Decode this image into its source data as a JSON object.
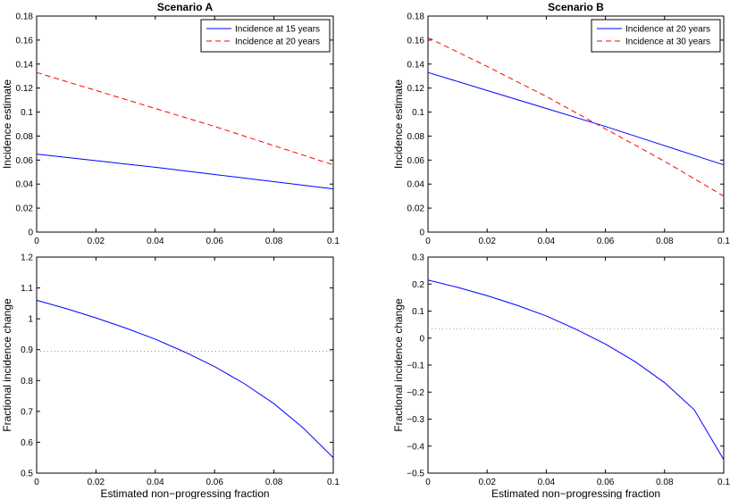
{
  "chart_data": [
    {
      "type": "line",
      "panel": "top-left",
      "title": "Scenario A",
      "xlabel": "",
      "ylabel": "Incidence estimate",
      "xlim": [
        0,
        0.1
      ],
      "ylim": [
        0,
        0.18
      ],
      "xticks": [
        "0",
        "0.02",
        "0.04",
        "0.06",
        "0.08",
        "0.1"
      ],
      "yticks": [
        "0",
        "0.02",
        "0.04",
        "0.06",
        "0.08",
        "0.1",
        "0.12",
        "0.14",
        "0.16",
        "0.18"
      ],
      "legend": "top-right",
      "series": [
        {
          "name": "Incidence at 15 years",
          "color": "#0000ff",
          "dash": "solid",
          "x": [
            0,
            0.02,
            0.04,
            0.06,
            0.08,
            0.1
          ],
          "y": [
            0.065,
            0.0595,
            0.054,
            0.048,
            0.042,
            0.036
          ]
        },
        {
          "name": "Incidence at 20 years",
          "color": "#ff0000",
          "dash": "dashed",
          "x": [
            0,
            0.02,
            0.04,
            0.06,
            0.08,
            0.1
          ],
          "y": [
            0.133,
            0.118,
            0.103,
            0.088,
            0.072,
            0.056
          ]
        }
      ]
    },
    {
      "type": "line",
      "panel": "top-right",
      "title": "Scenario B",
      "xlabel": "",
      "ylabel": "Incidence estimate",
      "xlim": [
        0,
        0.1
      ],
      "ylim": [
        0,
        0.18
      ],
      "xticks": [
        "0",
        "0.02",
        "0.04",
        "0.06",
        "0.08",
        "0.1"
      ],
      "yticks": [
        "0",
        "0.02",
        "0.04",
        "0.06",
        "0.08",
        "0.1",
        "0.12",
        "0.14",
        "0.16",
        "0.18"
      ],
      "legend": "top-right",
      "series": [
        {
          "name": "Incidence at 20 years",
          "color": "#0000ff",
          "dash": "solid",
          "x": [
            0,
            0.02,
            0.04,
            0.06,
            0.08,
            0.1
          ],
          "y": [
            0.133,
            0.118,
            0.103,
            0.088,
            0.072,
            0.056
          ]
        },
        {
          "name": "Incidence at 30 years",
          "color": "#ff0000",
          "dash": "dashed",
          "x": [
            0,
            0.02,
            0.04,
            0.06,
            0.08,
            0.1
          ],
          "y": [
            0.162,
            0.138,
            0.113,
            0.086,
            0.059,
            0.03
          ]
        }
      ]
    },
    {
      "type": "line",
      "panel": "bottom-left",
      "title": "",
      "xlabel": "Estimated non−progressing fraction",
      "ylabel": "Fractional incidence change",
      "xlim": [
        0,
        0.1
      ],
      "ylim": [
        0.5,
        1.2
      ],
      "xticks": [
        "0",
        "0.02",
        "0.04",
        "0.06",
        "0.08",
        "0.1"
      ],
      "yticks": [
        "0.5",
        "0.6",
        "0.7",
        "0.8",
        "0.9",
        "1",
        "1.1",
        "1.2"
      ],
      "reference_line": {
        "y": 0.895,
        "color": "#999999",
        "dash": "dotted"
      },
      "series": [
        {
          "name": "",
          "color": "#0000ff",
          "dash": "solid",
          "x": [
            0,
            0.01,
            0.02,
            0.03,
            0.04,
            0.05,
            0.06,
            0.07,
            0.08,
            0.09,
            0.1
          ],
          "y": [
            1.06,
            1.033,
            1.003,
            0.97,
            0.934,
            0.892,
            0.845,
            0.79,
            0.725,
            0.645,
            0.55
          ]
        }
      ]
    },
    {
      "type": "line",
      "panel": "bottom-right",
      "title": "",
      "xlabel": "Estimated non−progressing fraction",
      "ylabel": "Fractional incidence change",
      "xlim": [
        0,
        0.1
      ],
      "ylim": [
        -0.5,
        0.3
      ],
      "xticks": [
        "0",
        "0.02",
        "0.04",
        "0.06",
        "0.08",
        "0.1"
      ],
      "yticks": [
        "−0.5",
        "−0.4",
        "−0.3",
        "−0.2",
        "−0.1",
        "0",
        "0.1",
        "0.2",
        "0.3"
      ],
      "reference_line": {
        "y": 0.035,
        "color": "#999999",
        "dash": "dotted"
      },
      "series": [
        {
          "name": "",
          "color": "#0000ff",
          "dash": "solid",
          "x": [
            0,
            0.01,
            0.02,
            0.03,
            0.04,
            0.05,
            0.06,
            0.07,
            0.08,
            0.09,
            0.1
          ],
          "y": [
            0.215,
            0.188,
            0.157,
            0.122,
            0.082,
            0.033,
            -0.022,
            -0.087,
            -0.165,
            -0.265,
            -0.45
          ]
        }
      ]
    }
  ]
}
